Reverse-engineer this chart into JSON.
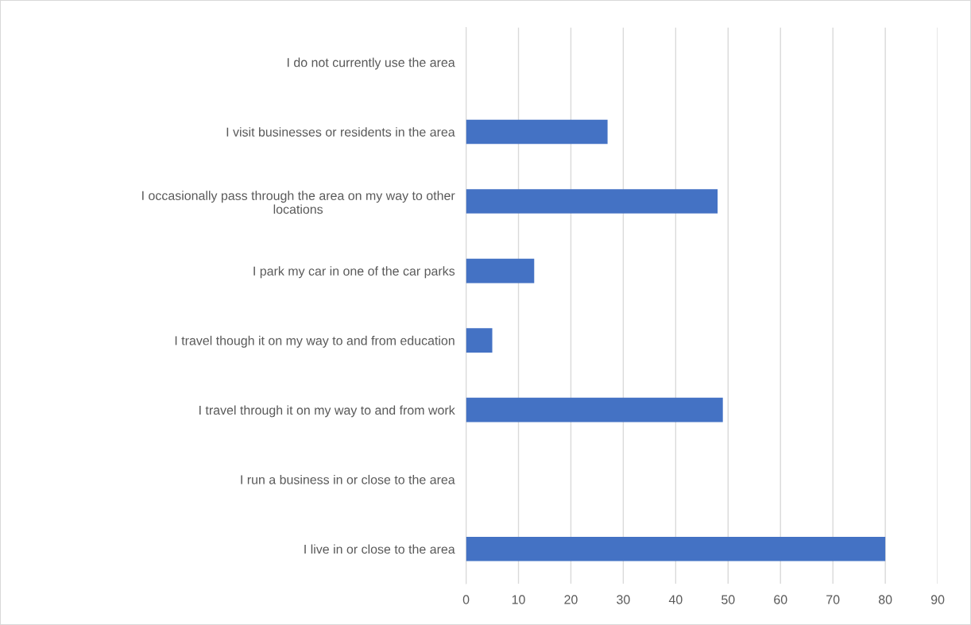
{
  "chart_data": {
    "type": "bar",
    "orientation": "horizontal",
    "categories": [
      "I do not currently use the area",
      "I visit businesses or residents in the area",
      "I occasionally pass through the area on my way to other\nlocations",
      "I park my car in one of the car parks",
      "I travel though it on my way to and from education",
      "I travel through it on my way to and from work",
      "I run a business in or close to the area",
      "I live in or close to the area"
    ],
    "values": [
      0,
      27,
      48,
      13,
      5,
      49,
      0,
      80
    ],
    "color": "#4472c4",
    "xlim": [
      0,
      90
    ],
    "xticks": [
      0,
      10,
      20,
      30,
      40,
      50,
      60,
      70,
      80,
      90
    ],
    "grid": "x",
    "legend": false
  }
}
